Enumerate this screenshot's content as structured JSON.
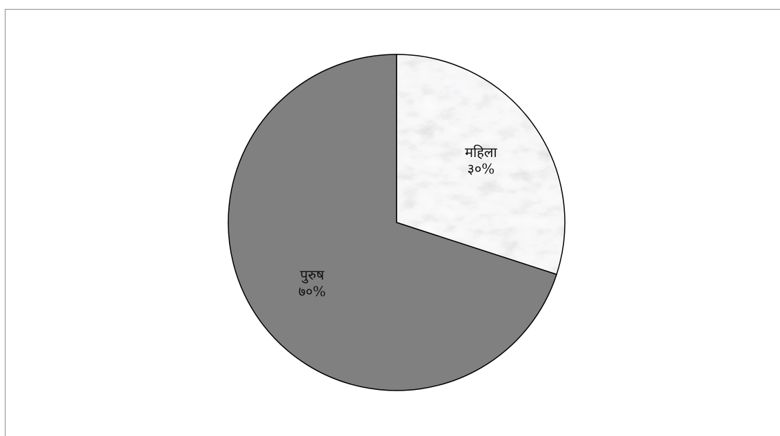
{
  "chart_data": {
    "type": "pie",
    "slices": [
      {
        "label": "महिला",
        "value": 30,
        "value_label": "३०%",
        "fill": "marble",
        "color": "#e6e6e6"
      },
      {
        "label": "पुरुष",
        "value": 70,
        "value_label": "७०%",
        "fill": "solid",
        "color": "#808080"
      }
    ],
    "start_angle": "12 o'clock",
    "direction": "clockwise",
    "legend": "none",
    "data_labels": "inside",
    "outline_color": "#000000",
    "title": ""
  }
}
